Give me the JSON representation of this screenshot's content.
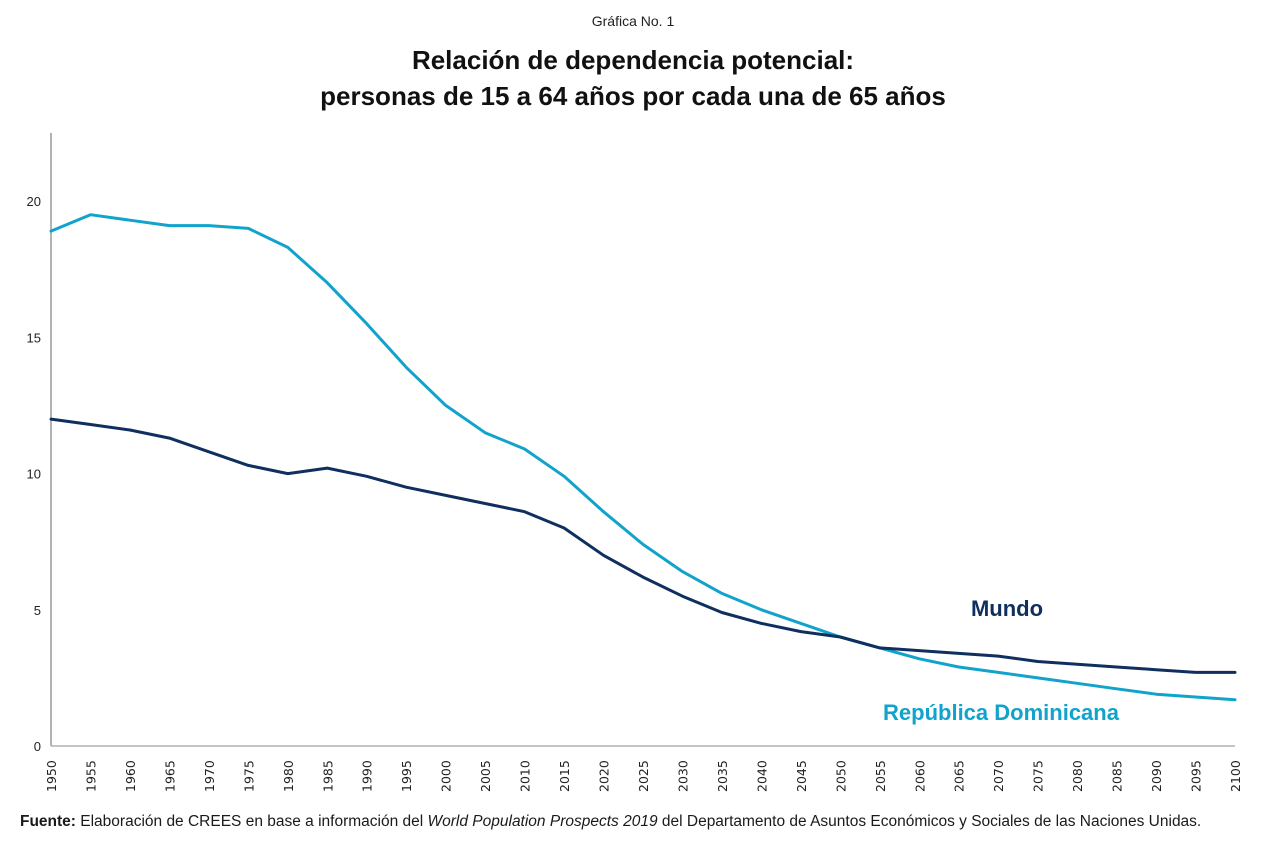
{
  "header": {
    "supertitle": "Gráfica No. 1",
    "title_line1": "Relación de dependencia potencial:",
    "title_line2": "personas de 15 a 64 años por cada una de 65 años"
  },
  "source": {
    "label": "Fuente:",
    "text_before": " Elaboración de CREES en base a información del ",
    "italic": "World Population Prospects 2019",
    "text_after": " del Departamento de Asuntos Económicos y Sociales de las Naciones Unidas."
  },
  "chart_data": {
    "type": "line",
    "title": "Relación de dependencia potencial: personas de 15 a 64 años por cada una de 65 años",
    "xlabel": "",
    "ylabel": "",
    "ylim": [
      0,
      22.5
    ],
    "yticks": [
      0,
      5,
      10,
      15,
      20
    ],
    "grid": false,
    "legend": "inline labels near line ends (right)",
    "x": [
      1950,
      1955,
      1960,
      1965,
      1970,
      1975,
      1980,
      1985,
      1990,
      1995,
      2000,
      2005,
      2010,
      2015,
      2020,
      2025,
      2030,
      2035,
      2040,
      2045,
      2050,
      2055,
      2060,
      2065,
      2070,
      2075,
      2080,
      2085,
      2090,
      2095,
      2100
    ],
    "series": [
      {
        "name": "República Dominicana",
        "color": "#12a3cc",
        "values": [
          18.9,
          19.5,
          19.3,
          19.1,
          19.1,
          19.0,
          18.3,
          17.0,
          15.5,
          13.9,
          12.5,
          11.5,
          10.9,
          9.9,
          8.6,
          7.4,
          6.4,
          5.6,
          5.0,
          4.5,
          4.0,
          3.6,
          3.2,
          2.9,
          2.7,
          2.5,
          2.3,
          2.1,
          1.9,
          1.8,
          1.7
        ]
      },
      {
        "name": "Mundo",
        "color": "#0f2f5e",
        "values": [
          12.0,
          11.8,
          11.6,
          11.3,
          10.8,
          10.3,
          10.0,
          10.2,
          9.9,
          9.5,
          9.2,
          8.9,
          8.6,
          8.0,
          7.0,
          6.2,
          5.5,
          4.9,
          4.5,
          4.2,
          4.0,
          3.6,
          3.5,
          3.4,
          3.3,
          3.1,
          3.0,
          2.9,
          2.8,
          2.7,
          2.7
        ]
      }
    ],
    "annotations": [
      {
        "text": "Mundo",
        "series": "Mundo"
      },
      {
        "text": "República Dominicana",
        "series": "República Dominicana"
      }
    ]
  }
}
